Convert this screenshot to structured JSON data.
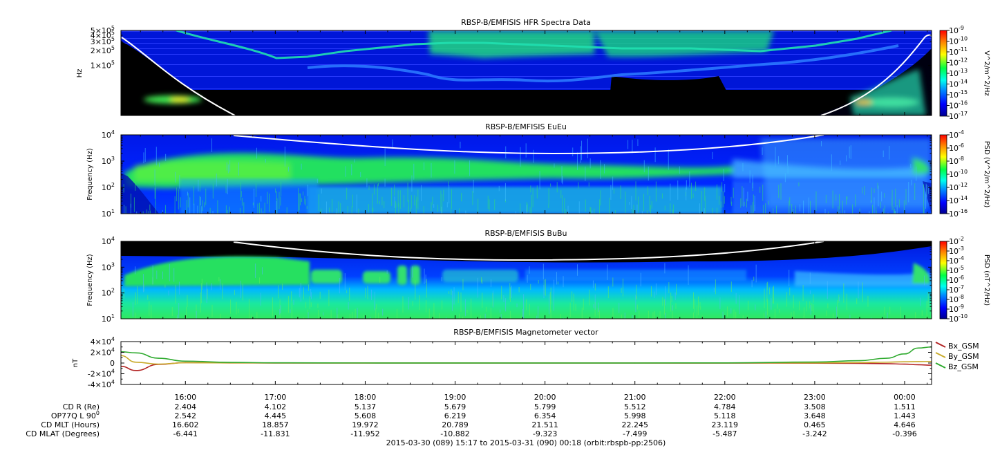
{
  "chart_data": [
    {
      "type": "heatmap",
      "title": "RBSP-B/EMFISIS  HFR Spectra Data",
      "ylabel": "Hz",
      "yscale": "log",
      "ylim": [
        10000,
        500000
      ],
      "ytick_values": [
        100000,
        200000,
        300000,
        400000,
        500000
      ],
      "ytick_labels": [
        {
          "m": "1",
          "e": "5"
        },
        {
          "m": "2",
          "e": "5"
        },
        {
          "m": "3",
          "e": "5"
        },
        {
          "m": "4",
          "e": "5"
        },
        {
          "m": "5",
          "e": "5"
        }
      ],
      "colorbar": {
        "label": "V^2/m^2/Hz",
        "exp_min": -17,
        "exp_max": -9,
        "ticks": [
          "-9",
          "-10",
          "-11",
          "-12",
          "-13",
          "-14",
          "-15",
          "-16",
          "-17"
        ]
      },
      "overlay_curve": "plasma frequency line (white)"
    },
    {
      "type": "heatmap",
      "title": "RBSP-B/EMFISIS  EuEu",
      "ylabel": "Frequency (Hz)",
      "yscale": "log",
      "ylim": [
        10,
        10000
      ],
      "ytick_labels": [
        {
          "m": "10",
          "e": "1"
        },
        {
          "m": "10",
          "e": "2"
        },
        {
          "m": "10",
          "e": "3"
        },
        {
          "m": "10",
          "e": "4"
        }
      ],
      "colorbar": {
        "label": "PSD (V^2/m^2/Hz)",
        "exp_min": -16,
        "exp_max": -4,
        "ticks": [
          "-4",
          "-6",
          "-8",
          "-10",
          "-12",
          "-14",
          "-16"
        ]
      },
      "overlay_curve": "gyrofrequency line (white)"
    },
    {
      "type": "heatmap",
      "title": "RBSP-B/EMFISIS  BuBu",
      "ylabel": "Frequency (Hz)",
      "yscale": "log",
      "ylim": [
        10,
        10000
      ],
      "ytick_labels": [
        {
          "m": "10",
          "e": "1"
        },
        {
          "m": "10",
          "e": "2"
        },
        {
          "m": "10",
          "e": "3"
        },
        {
          "m": "10",
          "e": "4"
        }
      ],
      "colorbar": {
        "label": "PSD (nT^2/Hz)",
        "exp_min": -10,
        "exp_max": -2,
        "ticks": [
          "-2",
          "-3",
          "-4",
          "-5",
          "-6",
          "-7",
          "-8",
          "-9",
          "-10"
        ]
      },
      "overlay_curve": "gyrofrequency line (white)"
    },
    {
      "type": "line",
      "title": "RBSP-B/EMFISIS  Magnetometer vector",
      "ylabel": "nT",
      "ylim": [
        -40000,
        40000
      ],
      "ytick_labels": [
        {
          "v": 40000,
          "m": "4×10",
          "e": "4"
        },
        {
          "v": 20000,
          "m": "2×10",
          "e": "4"
        },
        {
          "v": 0,
          "m": "0",
          "e": ""
        },
        {
          "v": -20000,
          "m": "-2×10",
          "e": "4"
        },
        {
          "v": -40000,
          "m": "-4×10",
          "e": "4"
        }
      ],
      "x_hours": [
        15.28,
        15.45,
        15.7,
        16.0,
        16.5,
        17.0,
        18.0,
        19.0,
        20.0,
        21.0,
        22.0,
        23.0,
        23.5,
        23.8,
        24.0,
        24.15,
        24.3
      ],
      "series": [
        {
          "name": "Bx_GSM",
          "color": "#b22222",
          "values": [
            -6000,
            -14000,
            -2500,
            800,
            300,
            100,
            50,
            20,
            0,
            0,
            -50,
            -200,
            -600,
            -1200,
            -2000,
            -3200,
            -4000
          ]
        },
        {
          "name": "By_GSM",
          "color": "#c8aa2a",
          "values": [
            14000,
            1500,
            -2000,
            500,
            200,
            100,
            50,
            20,
            0,
            0,
            50,
            250,
            800,
            1600,
            2400,
            2700,
            2800
          ]
        },
        {
          "name": "Bz_GSM",
          "color": "#2eaa2e",
          "values": [
            21000,
            19000,
            9000,
            3500,
            1200,
            400,
            150,
            80,
            60,
            80,
            300,
            1800,
            4500,
            9000,
            17000,
            28000,
            30000
          ]
        }
      ]
    }
  ],
  "time_axis": {
    "tick_labels": [
      "16:00",
      "17:00",
      "18:00",
      "19:00",
      "20:00",
      "21:00",
      "22:00",
      "23:00",
      "00:00"
    ],
    "tick_hours": [
      16,
      17,
      18,
      19,
      20,
      21,
      22,
      23,
      24
    ],
    "start_hour": 15.283,
    "end_hour": 24.3
  },
  "ephemeris": {
    "rows": [
      {
        "label": "CD R (Re)",
        "label_sup": "",
        "values": [
          "2.404",
          "4.102",
          "5.137",
          "5.679",
          "5.799",
          "5.512",
          "4.784",
          "3.508",
          "1.511"
        ]
      },
      {
        "label": "OP77Q L 90",
        "label_sup": "0",
        "values": [
          "2.542",
          "4.445",
          "5.608",
          "6.219",
          "6.354",
          "5.998",
          "5.118",
          "3.648",
          "1.443"
        ]
      },
      {
        "label": "CD MLT (Hours)",
        "label_sup": "",
        "values": [
          "16.602",
          "18.857",
          "19.972",
          "20.789",
          "21.511",
          "22.245",
          "23.119",
          "0.465",
          "4.646"
        ]
      },
      {
        "label": "CD MLAT (Degrees)",
        "label_sup": "",
        "values": [
          "-6.441",
          "-11.831",
          "-11.952",
          "-10.882",
          "-9.323",
          "-7.499",
          "-5.487",
          "-3.242",
          "-0.396"
        ]
      }
    ]
  },
  "footer": "2015-03-30 (089) 15:17 to 2015-03-31 (090) 00:18 (orbit:rbspb-pp:2506)"
}
